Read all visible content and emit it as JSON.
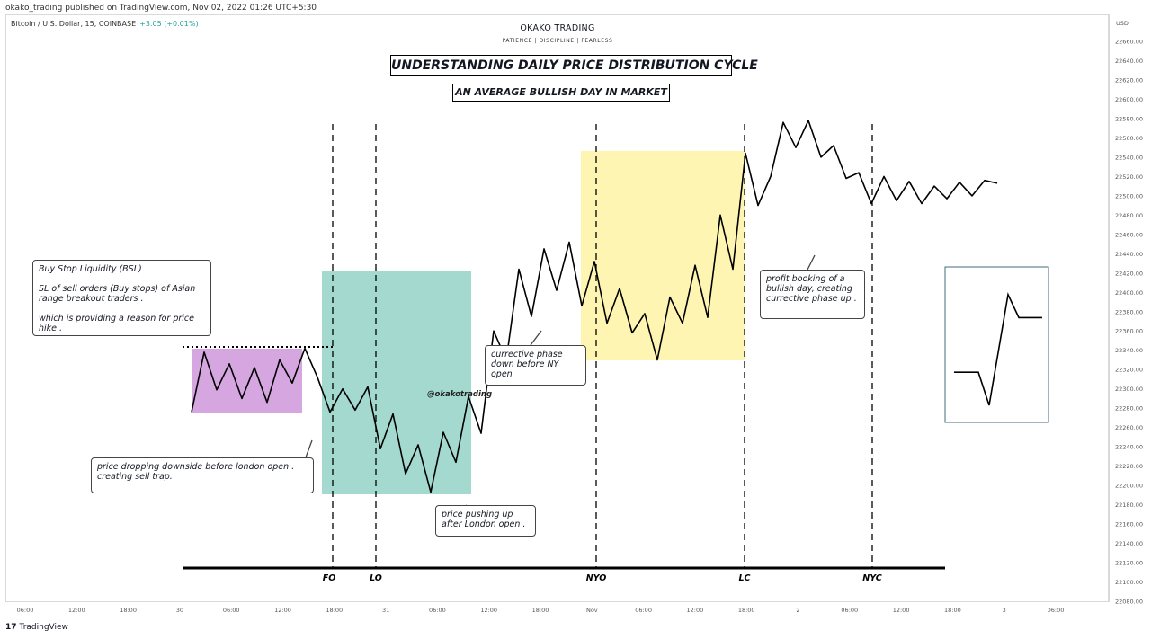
{
  "header": {
    "publish_line": "okako_trading published on TradingView.com, Nov 02, 2022 01:26 UTC+5:30",
    "symbol": "Bitcoin / U.S. Dollar, 15, COINBASE",
    "change": "+3.05 (+0.01%)",
    "brand": "OKAKO TRADING",
    "tagline": "PATIENCE | DISCIPLINE | FEARLESS"
  },
  "footer": {
    "logo": "17",
    "label": "TradingView"
  },
  "annotations": {
    "title": "UNDERSTANDING DAILY PRICE DISTRIBUTION CYCLE",
    "subtitle": "AN AVERAGE BULLISH DAY IN MARKET",
    "watermark": "@okakotrading",
    "notes": [
      {
        "text": "Buy Stop Liquidity (BSL)\n\n SL of sell orders (Buy stops) of Asian range breakout traders .\n\nwhich is providing a reason for price hike ."
      },
      {
        "text": "price dropping downside before london open . creating sell trap."
      },
      {
        "text": "price pushing up after London open ."
      },
      {
        "text": "currective phase down before NY open"
      },
      {
        "text": "profit booking of a bullish day, creating currective phase up ."
      }
    ],
    "session_labels": [
      "FO",
      "LO",
      "NYO",
      "LC",
      "NYC"
    ]
  },
  "colors": {
    "asian_range": "#d5a6e0",
    "london_zone": "#a3d9cf",
    "ny_zone": "#fff5b3",
    "price_line": "#000000",
    "change_positive": "#26a69a"
  },
  "chart_data": {
    "type": "line",
    "currency": "USD",
    "y_ticks": [
      22080,
      22100,
      22120,
      22140,
      22160,
      22180,
      22200,
      22220,
      22240,
      22260,
      22280,
      22300,
      22320,
      22340,
      22360,
      22380,
      22400,
      22420,
      22440,
      22460,
      22480,
      22500,
      22520,
      22540,
      22560,
      22580,
      22600,
      22620,
      22640,
      22660
    ],
    "ylim": [
      22070,
      22675
    ],
    "x_ticks": [
      "06:00",
      "12:00",
      "18:00",
      "30",
      "06:00",
      "12:00",
      "18:00",
      "31",
      "06:00",
      "12:00",
      "18:00",
      "Nov",
      "06:00",
      "12:00",
      "18:00",
      "2",
      "06:00",
      "12:00",
      "18:00",
      "3",
      "06:00"
    ],
    "price_path": [
      [
        0,
        22276
      ],
      [
        1,
        22338
      ],
      [
        2,
        22299
      ],
      [
        3,
        22326
      ],
      [
        4,
        22290
      ],
      [
        5,
        22322
      ],
      [
        6,
        22286
      ],
      [
        7,
        22330
      ],
      [
        8,
        22306
      ],
      [
        9,
        22342
      ],
      [
        10,
        22312
      ],
      [
        11,
        22276
      ],
      [
        12,
        22300
      ],
      [
        13,
        22278
      ],
      [
        14,
        22302
      ],
      [
        15,
        22238
      ],
      [
        16,
        22274
      ],
      [
        17,
        22212
      ],
      [
        18,
        22242
      ],
      [
        19,
        22193
      ],
      [
        20,
        22255
      ],
      [
        21,
        22224
      ],
      [
        22,
        22292
      ],
      [
        23,
        22254
      ],
      [
        24,
        22360
      ],
      [
        25,
        22330
      ],
      [
        26,
        22424
      ],
      [
        27,
        22375
      ],
      [
        28,
        22445
      ],
      [
        29,
        22402
      ],
      [
        30,
        22452
      ],
      [
        31,
        22386
      ],
      [
        32,
        22432
      ],
      [
        33,
        22368
      ],
      [
        34,
        22404
      ],
      [
        35,
        22358
      ],
      [
        36,
        22378
      ],
      [
        37,
        22330
      ],
      [
        38,
        22395
      ],
      [
        39,
        22368
      ],
      [
        40,
        22428
      ],
      [
        41,
        22374
      ],
      [
        42,
        22480
      ],
      [
        43,
        22424
      ],
      [
        44,
        22544
      ],
      [
        45,
        22490
      ],
      [
        46,
        22520
      ],
      [
        47,
        22576
      ],
      [
        48,
        22550
      ],
      [
        49,
        22578
      ],
      [
        50,
        22540
      ],
      [
        51,
        22552
      ],
      [
        52,
        22518
      ],
      [
        53,
        22524
      ],
      [
        54,
        22492
      ],
      [
        55,
        22520
      ],
      [
        56,
        22495
      ],
      [
        57,
        22515
      ],
      [
        58,
        22492
      ],
      [
        59,
        22510
      ],
      [
        60,
        22497
      ],
      [
        61,
        22514
      ],
      [
        62,
        22500
      ],
      [
        63,
        22516
      ],
      [
        64,
        22513
      ]
    ],
    "reference_chart": {
      "description": "schematic daily cycle",
      "path": [
        [
          0,
          0.28
        ],
        [
          1,
          0.28
        ],
        [
          2,
          0.05
        ],
        [
          3,
          0.82
        ],
        [
          4,
          0.66
        ],
        [
          5,
          0.66
        ]
      ]
    }
  }
}
